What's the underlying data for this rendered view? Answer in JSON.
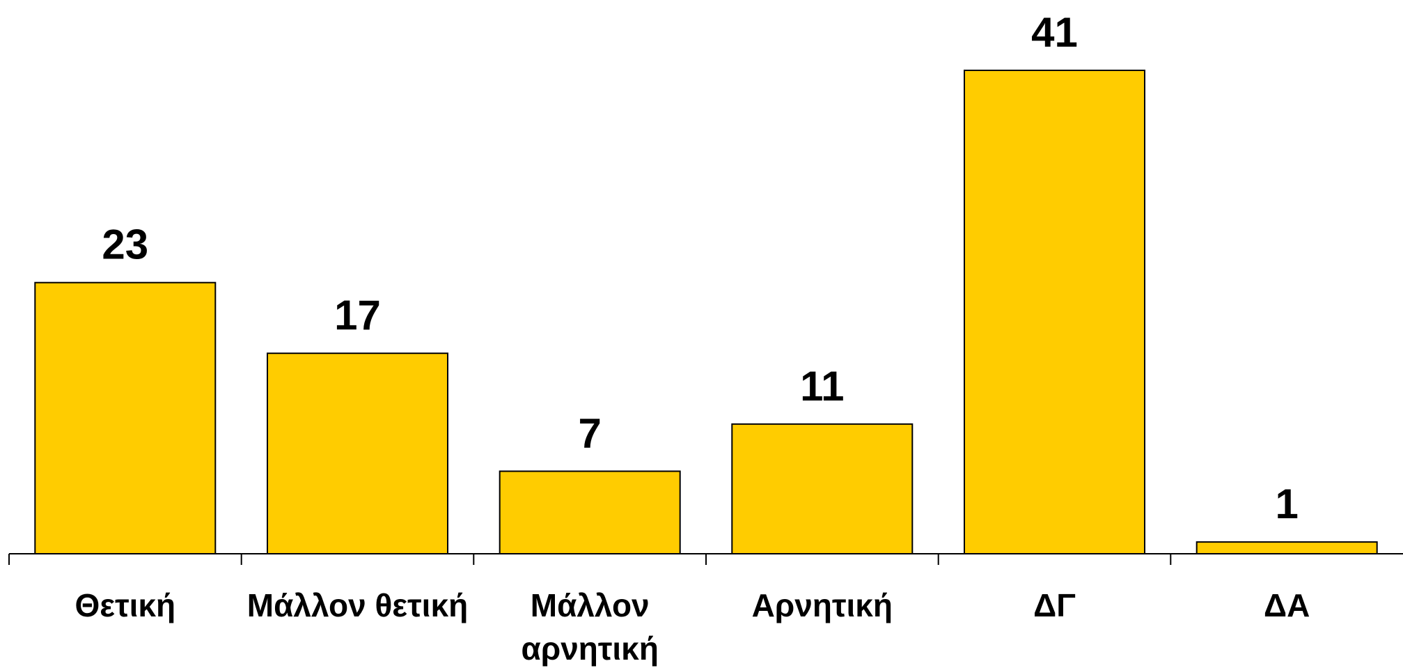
{
  "chart_data": {
    "type": "bar",
    "categories": [
      [
        "Θετική"
      ],
      [
        "Μάλλον θετική"
      ],
      [
        "Μάλλον",
        "αρνητική"
      ],
      [
        "Αρνητική"
      ],
      [
        "ΔΓ"
      ],
      [
        "ΔΑ"
      ]
    ],
    "values": [
      23,
      17,
      7,
      11,
      41,
      1
    ],
    "title": "",
    "xlabel": "",
    "ylabel": "",
    "ylim": [
      0,
      41
    ],
    "grid": false,
    "legend": "none",
    "data_labels": true,
    "colors": {
      "bar_fill": "#FFCC00",
      "bar_stroke": "#000000",
      "text": "#000000"
    }
  }
}
